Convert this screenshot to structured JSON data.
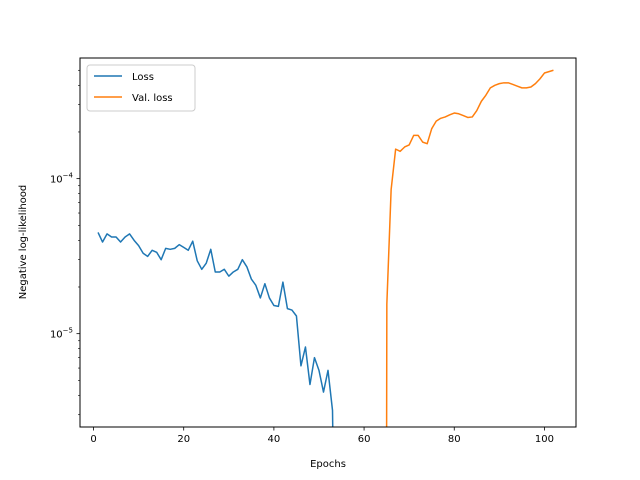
{
  "chart_data": {
    "type": "line",
    "title": "",
    "xlabel": "Epochs",
    "ylabel": "Negative log-likelihood",
    "yscale": "log",
    "xlim": [
      -3,
      107
    ],
    "ylim": [
      2.5e-06,
      0.0006
    ],
    "x_ticks": [
      0,
      20,
      40,
      60,
      80,
      100
    ],
    "y_ticks": [
      {
        "value": 1e-05,
        "base": "10",
        "exp": "−5"
      },
      {
        "value": 0.0001,
        "base": "10",
        "exp": "−4"
      }
    ],
    "grid": false,
    "legend_position": "top-left",
    "series": [
      {
        "name": "Loss",
        "color": "#1f77b4",
        "x": [
          1,
          2,
          3,
          4,
          5,
          6,
          7,
          8,
          9,
          10,
          11,
          12,
          13,
          14,
          15,
          16,
          17,
          18,
          19,
          20,
          21,
          22,
          23,
          24,
          25,
          26,
          27,
          28,
          29,
          30,
          31,
          32,
          33,
          34,
          35,
          36,
          37,
          38,
          39,
          40,
          41,
          42,
          43,
          44,
          45,
          46,
          47,
          48,
          49,
          50,
          51,
          52,
          53,
          53.05
        ],
        "y": [
          4.5e-05,
          3.9e-05,
          4.4e-05,
          4.2e-05,
          4.2e-05,
          3.9e-05,
          4.2e-05,
          4.4e-05,
          4e-05,
          3.7e-05,
          3.3e-05,
          3.15e-05,
          3.45e-05,
          3.35e-05,
          3e-05,
          3.55e-05,
          3.5e-05,
          3.55e-05,
          3.75e-05,
          3.6e-05,
          3.45e-05,
          3.95e-05,
          2.95e-05,
          2.6e-05,
          2.85e-05,
          3.5e-05,
          2.5e-05,
          2.5e-05,
          2.6e-05,
          2.35e-05,
          2.5e-05,
          2.6e-05,
          3e-05,
          2.7e-05,
          2.25e-05,
          2.05e-05,
          1.7e-05,
          2.1e-05,
          1.7e-05,
          1.52e-05,
          1.5e-05,
          2.15e-05,
          1.45e-05,
          1.42e-05,
          1.3e-05,
          6.2e-06,
          8.2e-06,
          4.7e-06,
          7e-06,
          5.8e-06,
          4.2e-06,
          5.8e-06,
          3.2e-06,
          2.5e-06
        ]
      },
      {
        "name": "Val. loss",
        "color": "#ff7f0e",
        "x": [
          65,
          65.05,
          66,
          67,
          68,
          69,
          70,
          71,
          72,
          73,
          74,
          75,
          76,
          77,
          78,
          79,
          80,
          81,
          82,
          83,
          84,
          85,
          86,
          87,
          88,
          89,
          90,
          91,
          92,
          93,
          94,
          95,
          96,
          97,
          98,
          99,
          100,
          101,
          102
        ],
        "y": [
          2.5e-06,
          1.55e-05,
          8.5e-05,
          0.000155,
          0.00015,
          0.00016,
          0.000165,
          0.00019,
          0.00019,
          0.000172,
          0.000168,
          0.00021,
          0.000235,
          0.000245,
          0.00025,
          0.000258,
          0.000265,
          0.000262,
          0.000255,
          0.000248,
          0.00025,
          0.000275,
          0.000315,
          0.000345,
          0.000385,
          0.0004,
          0.00041,
          0.000415,
          0.000415,
          0.000405,
          0.000395,
          0.000385,
          0.000385,
          0.00039,
          0.00041,
          0.00044,
          0.00048,
          0.00049,
          0.0005
        ]
      }
    ]
  }
}
